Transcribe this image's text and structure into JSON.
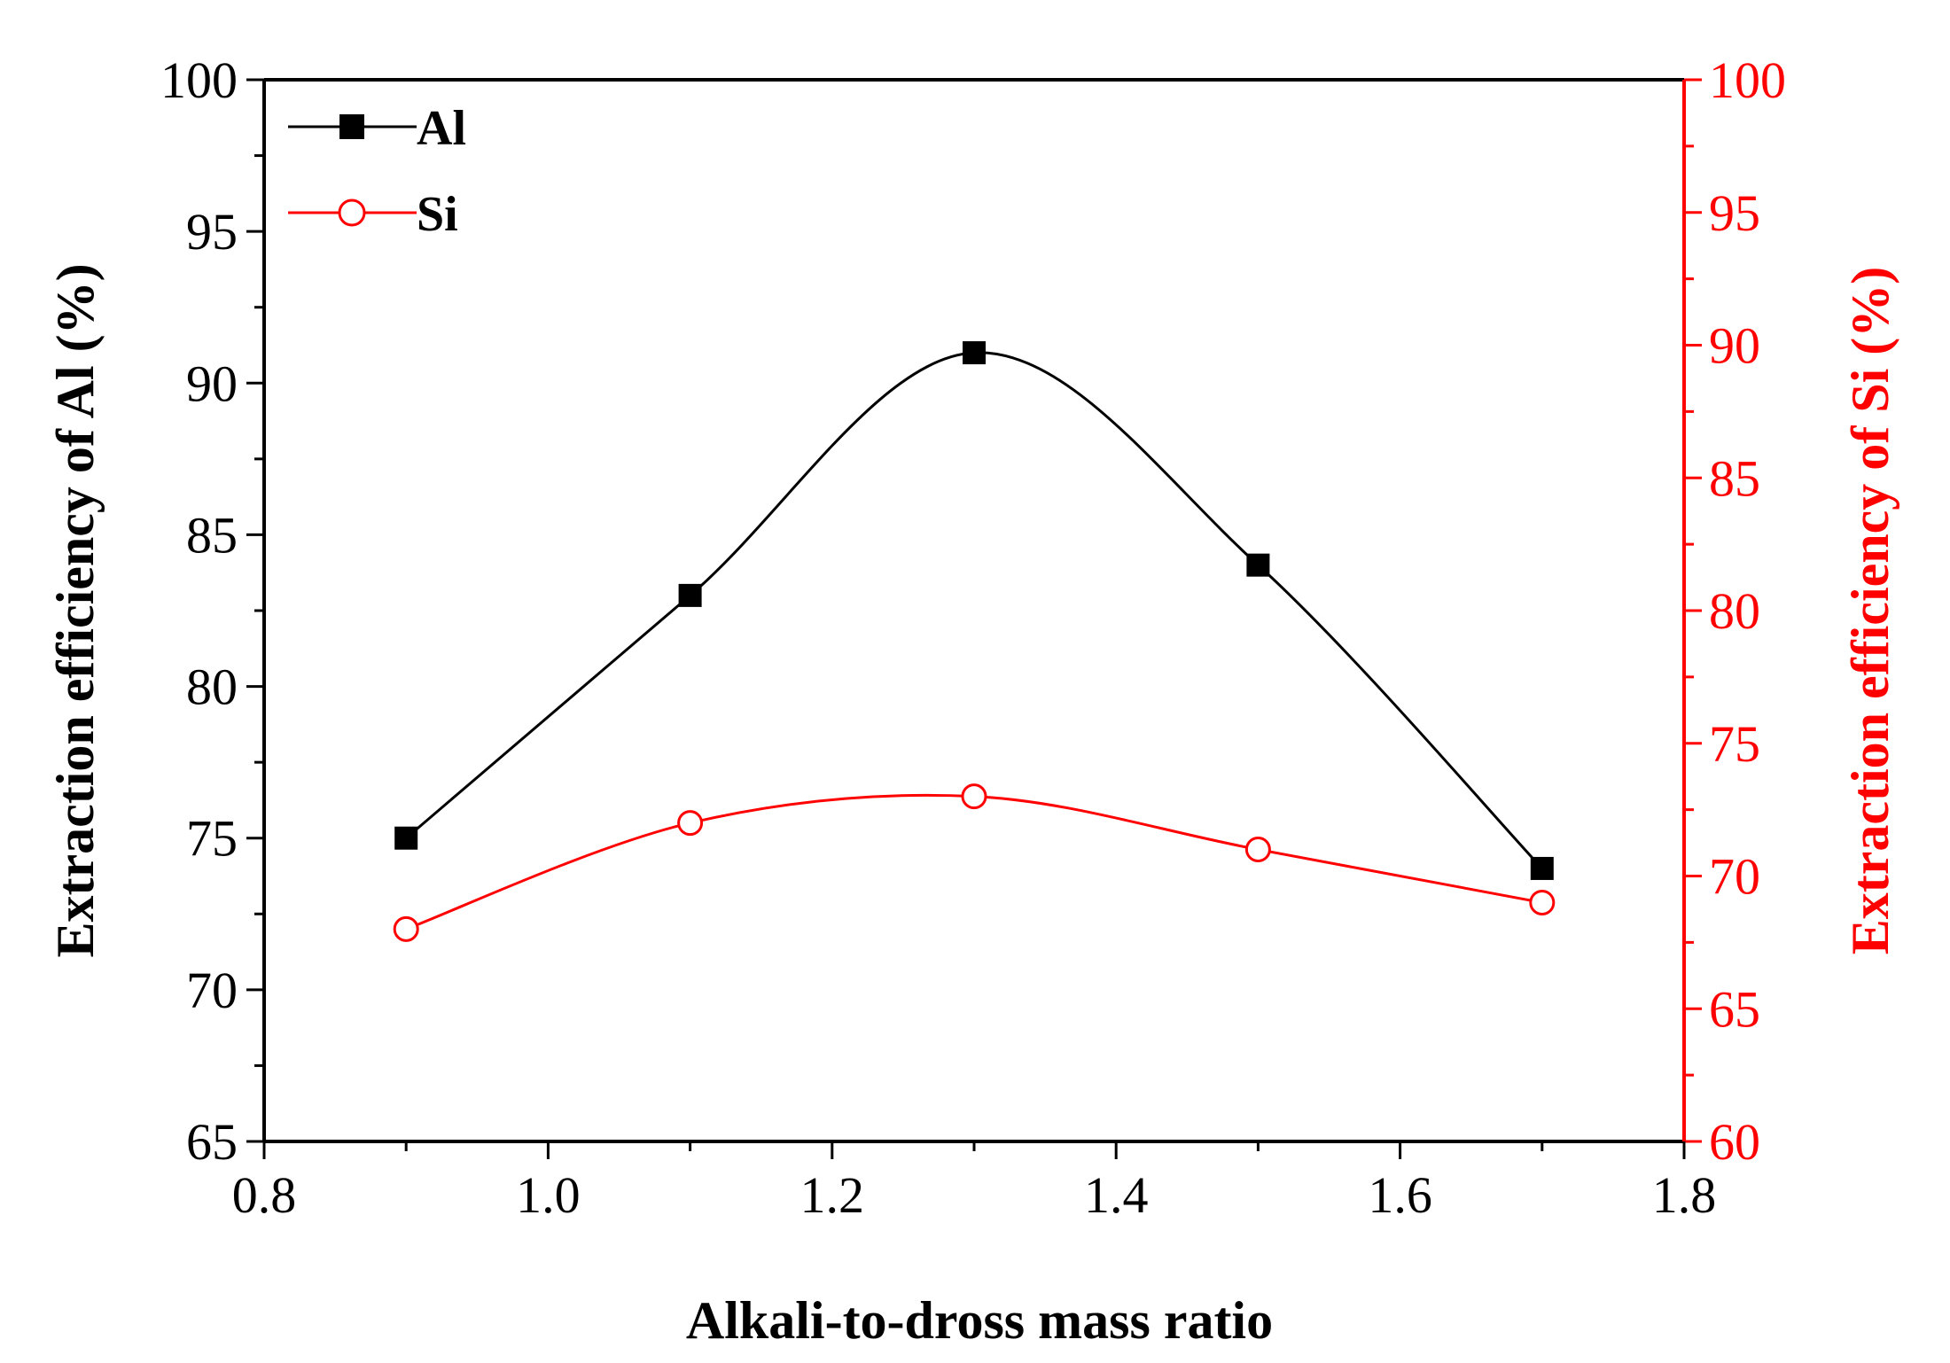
{
  "chart_data": {
    "type": "line",
    "title": "",
    "xlabel": "Alkali-to-dross mass ratio",
    "ylabel_left": "Extraction efficiency of Al (%)",
    "ylabel_right": "Extraction efficiency of Si (%)",
    "xlim": [
      0.8,
      1.8
    ],
    "ylim_left": [
      65,
      100
    ],
    "ylim_right": [
      60,
      100
    ],
    "x_ticks": [
      "0.8",
      "1.0",
      "1.2",
      "1.4",
      "1.6",
      "1.8"
    ],
    "y_left_ticks": [
      "65",
      "70",
      "75",
      "80",
      "85",
      "90",
      "95",
      "100"
    ],
    "y_right_ticks": [
      "60",
      "65",
      "70",
      "75",
      "80",
      "85",
      "90",
      "95",
      "100"
    ],
    "grid": false,
    "legend_position": "top-left",
    "x": [
      0.9,
      1.1,
      1.3,
      1.5,
      1.7
    ],
    "series": [
      {
        "name": "Al",
        "axis": "left",
        "color": "#000000",
        "marker": "filled-square",
        "values": [
          75,
          83,
          91,
          84,
          74
        ]
      },
      {
        "name": "Si",
        "axis": "right",
        "color": "#ff0000",
        "marker": "open-circle",
        "values": [
          68,
          72,
          73,
          71,
          69
        ]
      }
    ]
  }
}
